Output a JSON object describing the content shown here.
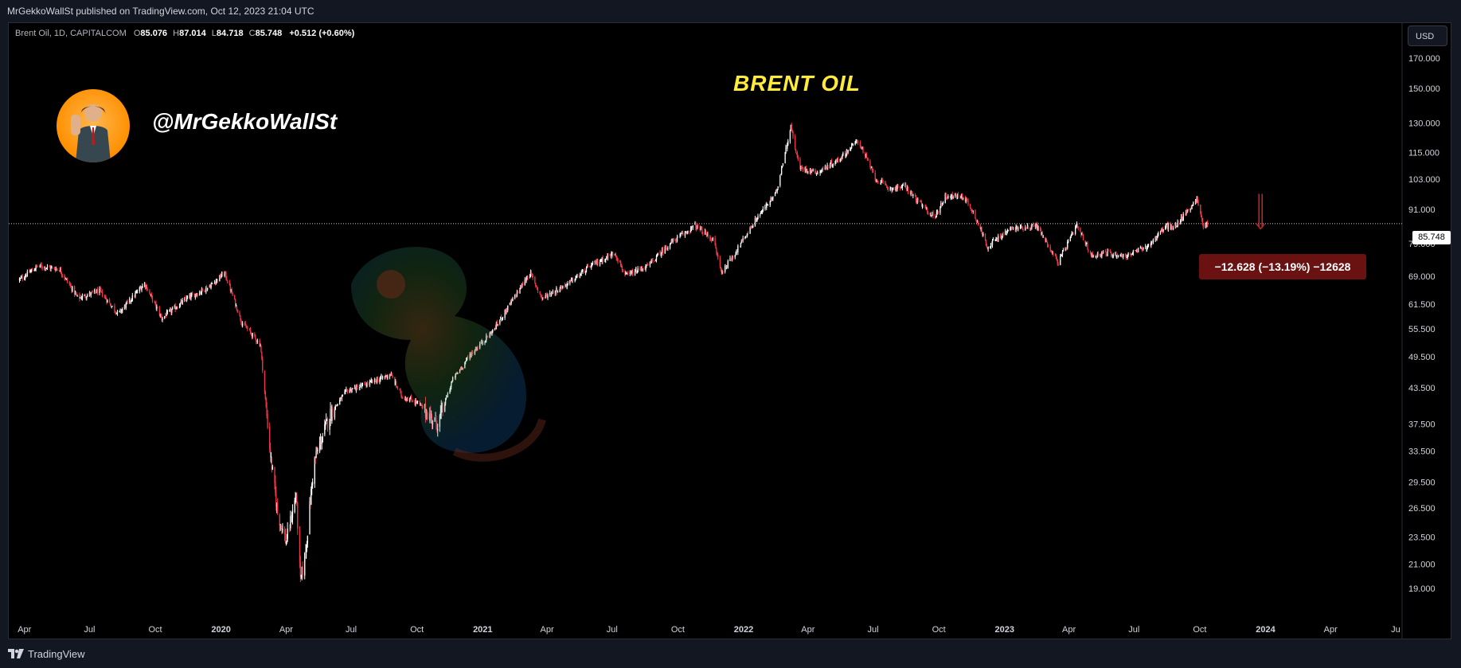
{
  "publish_header": "MrGekkoWallSt published on TradingView.com, Oct 12, 2023 21:04 UTC",
  "legend": {
    "symbol": "Brent Oil, 1D, CAPITALCOM",
    "open_label": "O",
    "open": "85.076",
    "high_label": "H",
    "high": "87.014",
    "low_label": "L",
    "low": "84.718",
    "close_label": "C",
    "close": "85.748",
    "change": "+0.512 (+0.60%)"
  },
  "currency_button": "USD",
  "watermark_title": "BRENT OIL",
  "author_handle": "@MrGekkoWallSt",
  "current_price_tag": "85.748",
  "measure_label": "−12.628 (−13.19%) −12628",
  "footer_brand": "TradingView",
  "colors": {
    "up": "#ffffff",
    "down": "#f23645",
    "title": "#ffeb3b",
    "measure_bg": "#6a1212"
  },
  "chart_data": {
    "type": "candlestick",
    "title": "BRENT OIL",
    "log_scale": true,
    "grid": false,
    "y_ticks": [
      "170.000",
      "150.000",
      "130.000",
      "115.000",
      "103.000",
      "91.000",
      "79.000",
      "69.000",
      "61.500",
      "55.500",
      "49.500",
      "43.500",
      "37.500",
      "33.500",
      "29.500",
      "26.500",
      "23.500",
      "21.000",
      "19.000"
    ],
    "x_ticks": [
      "Apr",
      "Jul",
      "Oct",
      "2020",
      "Apr",
      "Jul",
      "Oct",
      "2021",
      "Apr",
      "Jul",
      "Oct",
      "2022",
      "Apr",
      "Jul",
      "Oct",
      "2023",
      "Apr",
      "Jul",
      "Oct",
      "2024",
      "Apr",
      "Ju"
    ],
    "ylim": [
      17.5,
      190
    ],
    "series": [
      {
        "x": [
          "2019-03-25",
          "2019-04-20",
          "2019-05-20",
          "2019-06-15",
          "2019-07-15",
          "2019-08-10",
          "2019-09-16",
          "2019-10-10",
          "2019-11-15",
          "2019-12-15",
          "2020-01-06",
          "2020-01-30",
          "2020-02-25",
          "2020-03-10",
          "2020-03-20",
          "2020-04-01",
          "2020-04-15",
          "2020-04-21",
          "2020-04-28",
          "2020-05-10",
          "2020-06-01",
          "2020-06-25",
          "2020-07-20",
          "2020-08-25",
          "2020-09-10",
          "2020-10-01",
          "2020-10-30",
          "2020-11-20",
          "2020-12-15",
          "2021-01-15",
          "2021-02-10",
          "2021-03-08",
          "2021-03-25",
          "2021-05-01",
          "2021-06-01",
          "2021-07-05",
          "2021-07-20",
          "2021-08-20",
          "2021-09-20",
          "2021-10-25",
          "2021-11-20",
          "2021-12-01",
          "2021-12-20",
          "2022-01-20",
          "2022-02-15",
          "2022-03-08",
          "2022-03-20",
          "2022-04-15",
          "2022-05-15",
          "2022-06-10",
          "2022-07-05",
          "2022-07-25",
          "2022-08-15",
          "2022-09-05",
          "2022-09-25",
          "2022-10-10",
          "2022-11-05",
          "2022-11-20",
          "2022-12-08",
          "2023-01-10",
          "2023-02-15",
          "2023-03-17",
          "2023-04-12",
          "2023-05-03",
          "2023-05-20",
          "2023-06-20",
          "2023-07-20",
          "2023-08-15",
          "2023-08-25",
          "2023-09-27",
          "2023-10-06",
          "2023-10-12"
        ],
        "y": [
          68,
          72,
          71,
          63,
          65,
          59,
          67,
          58,
          63,
          66,
          70,
          57,
          52,
          33,
          26,
          23,
          28,
          19.5,
          22,
          32,
          39,
          43,
          44,
          46,
          42,
          41,
          37.5,
          45,
          50,
          55,
          62,
          70,
          63,
          67,
          72,
          76,
          69,
          72,
          79,
          85,
          80,
          70,
          76,
          88,
          97,
          128,
          108,
          106,
          112,
          121,
          103,
          99,
          100,
          93,
          88,
          96,
          96,
          89,
          78,
          84,
          85,
          73,
          85,
          75,
          76,
          75,
          78,
          85,
          84,
          95,
          85,
          85.748
        ]
      }
    ],
    "annotations": [
      {
        "type": "measure",
        "text": "−12.628 (−13.19%) −12628"
      }
    ]
  }
}
